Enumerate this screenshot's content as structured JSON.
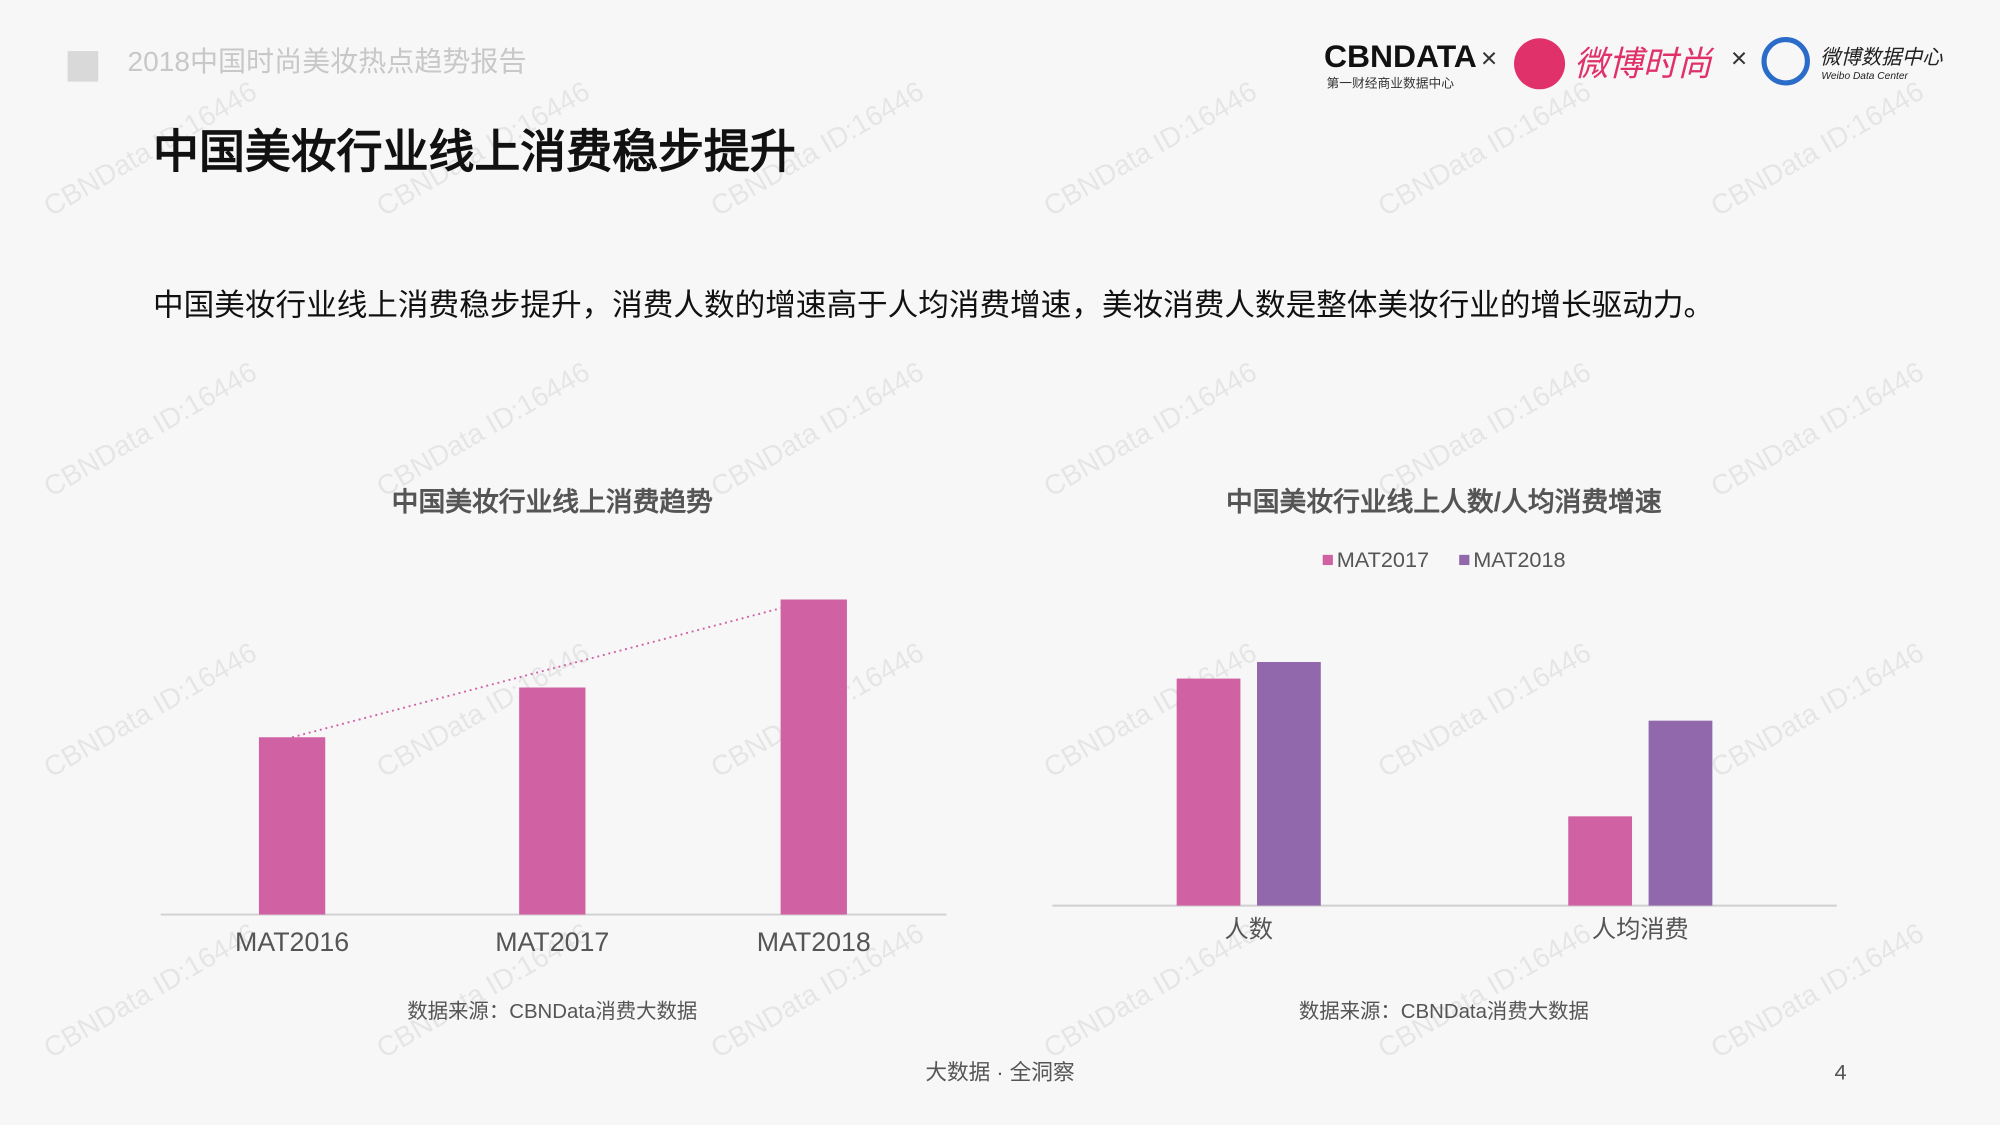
{
  "header": {
    "report_name": "2018中国时尚美妆热点趋势报告",
    "title": "中国美妆行业线上消费稳步提升",
    "subtitle": "中国美妆行业线上消费稳步提升，消费人数的增速高于人均消费增速，美妆消费人数是整体美妆行业的增长驱动力。"
  },
  "logos": {
    "cbndata": "CBNDATA",
    "cbndata_sub": "第一财经商业数据中心",
    "times": "×",
    "weibo_fashion": "微博时尚",
    "weibo_data": "微博数据中心",
    "weibo_data_en": "Weibo Data Center"
  },
  "watermark": "CBNData ID:16446",
  "chart_data": [
    {
      "type": "bar",
      "title": "中国美妆行业线上消费趋势",
      "categories": [
        "MAT2016",
        "MAT2017",
        "MAT2018"
      ],
      "values": [
        139,
        178,
        247
      ],
      "color": "#d062a4",
      "ylim": [
        0,
        260
      ],
      "trendline": true,
      "source": "数据来源：CBNData消费大数据"
    },
    {
      "type": "bar",
      "title": "中国美妆行业线上人数/人均消费增速",
      "categories": [
        "人数",
        "人均消费"
      ],
      "series": [
        {
          "name": "MAT2017",
          "color": "#d062a4",
          "values": [
            178,
            70
          ]
        },
        {
          "name": "MAT2018",
          "color": "#9268ac",
          "values": [
            191,
            145
          ]
        }
      ],
      "ylim": [
        0,
        260
      ],
      "source": "数据来源：CBNData消费大数据"
    }
  ],
  "footer": {
    "slogan": "大数据 · 全洞察",
    "page": 4
  }
}
